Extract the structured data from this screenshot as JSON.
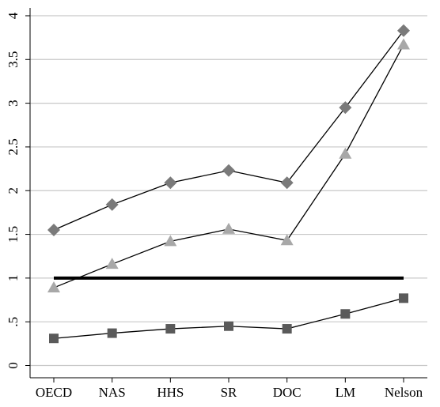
{
  "chart_data": {
    "type": "line",
    "categories": [
      "OECD",
      "NAS",
      "HHS",
      "SR",
      "DOC",
      "LM",
      "Nelson"
    ],
    "series": [
      {
        "color": "#7a7a7a",
        "marker": "diamond",
        "values": [
          1.55,
          1.84,
          2.09,
          2.23,
          2.09,
          2.95,
          3.83
        ]
      },
      {
        "color": "#a8a8a8",
        "marker": "triangle",
        "values": [
          0.89,
          1.16,
          1.42,
          1.56,
          1.43,
          2.42,
          3.67
        ]
      },
      {
        "color": "#5a5a5a",
        "marker": "square",
        "values": [
          0.31,
          0.37,
          0.42,
          0.45,
          0.42,
          0.59,
          0.77
        ]
      }
    ],
    "yline": 1,
    "ylim": [
      -0.14,
      4.09
    ],
    "yticks": [
      0,
      {
        "value": 0.5,
        "label": ".5"
      },
      1,
      1.5,
      2,
      2.5,
      3,
      3.5,
      4
    ],
    "grid": true
  }
}
